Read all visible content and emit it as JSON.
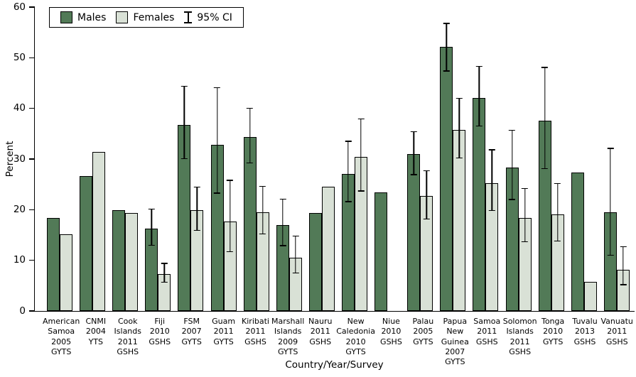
{
  "chart_data": {
    "type": "bar",
    "title": "",
    "xlabel": "Country/Year/Survey",
    "ylabel": "Percent",
    "ylim": [
      0,
      60
    ],
    "yticks": [
      0,
      10,
      20,
      30,
      40,
      50,
      60
    ],
    "grid": false,
    "legend_position": "top-left",
    "series_names": [
      "Males",
      "Females"
    ],
    "legend": {
      "males": "Males",
      "females": "Females",
      "ci": "95% CI"
    },
    "colors": {
      "males": "#527a57",
      "females": "#d9e1d6",
      "axis": "#000000",
      "error_bar": "#000000",
      "background": "#ffffff"
    },
    "groups": [
      {
        "label": "American Samoa 2005 GYTS",
        "label_lines": [
          "American",
          "Samoa",
          "2005",
          "GYTS"
        ],
        "males": 18.4,
        "males_ci": null,
        "females": 15.2,
        "females_ci": null
      },
      {
        "label": "CNMI 2004 YTS",
        "label_lines": [
          "CNMI",
          "2004",
          "YTS"
        ],
        "males": 26.6,
        "males_ci": null,
        "females": 31.4,
        "females_ci": null
      },
      {
        "label": "Cook Islands 2011 GSHS",
        "label_lines": [
          "Cook",
          "Islands",
          "2011",
          "GSHS"
        ],
        "males": 19.9,
        "males_ci": null,
        "females": 19.4,
        "females_ci": null
      },
      {
        "label": "Fiji 2010 GSHS",
        "label_lines": [
          "Fiji",
          "2010",
          "GSHS"
        ],
        "males": 16.2,
        "males_ci": [
          12.9,
          20.2
        ],
        "females": 7.3,
        "females_ci": [
          5.6,
          9.5
        ]
      },
      {
        "label": "FSM 2007 GYTS",
        "label_lines": [
          "FSM",
          "2007",
          "GYTS"
        ],
        "males": 36.8,
        "males_ci": [
          30.0,
          44.5
        ],
        "females": 19.9,
        "females_ci": [
          15.8,
          24.6
        ]
      },
      {
        "label": "Guam 2011 GYTS",
        "label_lines": [
          "Guam",
          "2011",
          "GYTS"
        ],
        "males": 32.8,
        "males_ci": [
          23.2,
          44.2
        ],
        "females": 17.7,
        "females_ci": [
          11.6,
          25.9
        ]
      },
      {
        "label": "Kiribati 2011 GSHS",
        "label_lines": [
          "Kiribati",
          "2011",
          "GSHS"
        ],
        "males": 34.4,
        "males_ci": [
          29.1,
          40.1
        ],
        "females": 19.5,
        "females_ci": [
          15.1,
          24.7
        ]
      },
      {
        "label": "Marshall Islands 2009 GYTS",
        "label_lines": [
          "Marshall",
          "Islands",
          "2009",
          "GYTS"
        ],
        "males": 16.9,
        "males_ci": [
          12.8,
          22.2
        ],
        "females": 10.5,
        "females_ci": [
          7.4,
          14.9
        ]
      },
      {
        "label": "Nauru 2011 GSHS",
        "label_lines": [
          "Nauru",
          "2011",
          "GSHS"
        ],
        "males": 19.4,
        "males_ci": null,
        "females": 24.5,
        "females_ci": null
      },
      {
        "label": "New Caledonia 2010 GYTS",
        "label_lines": [
          "New",
          "Caledonia",
          "2010",
          "GYTS"
        ],
        "males": 27.1,
        "males_ci": [
          21.5,
          33.6
        ],
        "females": 30.4,
        "females_ci": [
          23.6,
          38.0
        ]
      },
      {
        "label": "Niue 2010 GSHS",
        "label_lines": [
          "Niue",
          "2010",
          "GSHS"
        ],
        "males": 23.4,
        "males_ci": null,
        "females": null,
        "females_ci": null
      },
      {
        "label": "Palau 2005 GYTS",
        "label_lines": [
          "Palau",
          "2005",
          "GYTS"
        ],
        "males": 31.0,
        "males_ci": [
          26.8,
          35.5
        ],
        "females": 22.7,
        "females_ci": [
          18.1,
          27.8
        ]
      },
      {
        "label": "Papua New Guinea 2007 GYTS",
        "label_lines": [
          "Papua",
          "New",
          "Guinea",
          "2007",
          "GYTS"
        ],
        "males": 52.1,
        "males_ci": [
          47.3,
          56.9
        ],
        "females": 35.7,
        "females_ci": [
          30.1,
          42.1
        ]
      },
      {
        "label": "Samoa 2011 GSHS",
        "label_lines": [
          "Samoa",
          "2011",
          "GSHS"
        ],
        "males": 42.1,
        "males_ci": [
          36.4,
          48.4
        ],
        "females": 25.3,
        "females_ci": [
          19.7,
          31.9
        ]
      },
      {
        "label": "Solomon Islands 2011 GSHS",
        "label_lines": [
          "Solomon",
          "Islands",
          "2011",
          "GSHS"
        ],
        "males": 28.3,
        "males_ci": [
          21.9,
          35.8
        ],
        "females": 18.3,
        "females_ci": [
          13.6,
          24.3
        ]
      },
      {
        "label": "Tonga 2010 GYTS",
        "label_lines": [
          "Tonga",
          "2010",
          "GYTS"
        ],
        "males": 37.6,
        "males_ci": [
          28.0,
          48.2
        ],
        "females": 19.0,
        "females_ci": [
          13.7,
          25.3
        ]
      },
      {
        "label": "Tuvalu 2013 GSHS",
        "label_lines": [
          "Tuvalu",
          "2013",
          "GSHS"
        ],
        "males": 27.3,
        "males_ci": null,
        "females": 5.7,
        "females_ci": null
      },
      {
        "label": "Vanuatu 2011 GSHS",
        "label_lines": [
          "Vanuatu",
          "2011",
          "GSHS"
        ],
        "males": 19.5,
        "males_ci": [
          10.9,
          32.2
        ],
        "females": 8.1,
        "females_ci": [
          5.1,
          12.8
        ]
      }
    ]
  }
}
